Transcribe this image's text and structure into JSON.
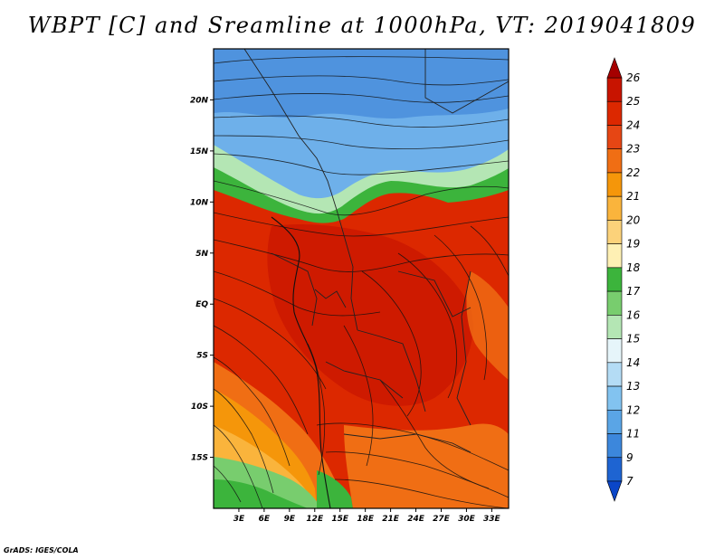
{
  "title": "WBPT [C] and Sreamline at 1000hPa, VT: 2019041809",
  "credit": "GrADS: IGES/COLA",
  "map": {
    "variable": "WBPT [C]",
    "level": "1000hPa",
    "valid_time": "2019041809",
    "lon_range": [
      0,
      35
    ],
    "lat_range": [
      -20,
      25
    ],
    "x_ticks": [
      "3E",
      "6E",
      "9E",
      "12E",
      "15E",
      "18E",
      "21E",
      "24E",
      "27E",
      "30E",
      "33E"
    ],
    "x_tick_values": [
      3,
      6,
      9,
      12,
      15,
      18,
      21,
      24,
      27,
      30,
      33
    ],
    "y_ticks": [
      "20N",
      "15N",
      "10N",
      "5N",
      "EQ",
      "5S",
      "10S",
      "15S"
    ],
    "y_tick_values": [
      20,
      15,
      10,
      5,
      0,
      -5,
      -10,
      -15
    ]
  },
  "colorbar": {
    "labels": [
      "26",
      "25",
      "24",
      "23",
      "22",
      "21",
      "20",
      "19",
      "18",
      "17",
      "16",
      "15",
      "14",
      "13",
      "12",
      "11",
      "9",
      "7"
    ],
    "colors": [
      "#a50000",
      "#c81400",
      "#dc2800",
      "#e64614",
      "#f06e14",
      "#f5960a",
      "#fab43c",
      "#fcd27a",
      "#fef0b4",
      "#3cb43c",
      "#78cd6e",
      "#b4e6b4",
      "#e6f5fa",
      "#b4dcf5",
      "#82c3f0",
      "#5aa5e6",
      "#3c87dc",
      "#1e64d2",
      "#0a46c8"
    ]
  }
}
